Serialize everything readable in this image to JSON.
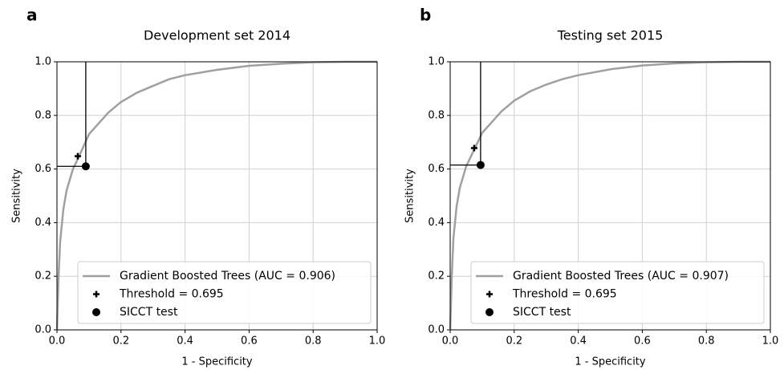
{
  "chart_data": [
    {
      "type": "line",
      "panel_label": "a",
      "title": "Development set 2014",
      "xlabel": "1 - Specificity",
      "ylabel": "Sensitivity",
      "xlim": [
        0,
        1
      ],
      "ylim": [
        0,
        1
      ],
      "xticks": [
        {
          "value": 0,
          "label": "0.0"
        },
        {
          "value": 0.2,
          "label": "0.2"
        },
        {
          "value": 0.4,
          "label": "0.4"
        },
        {
          "value": 0.6,
          "label": "0.6"
        },
        {
          "value": 0.8,
          "label": "0.8"
        },
        {
          "value": 1,
          "label": "1.0"
        }
      ],
      "yticks": [
        {
          "value": 0,
          "label": "0.0"
        },
        {
          "value": 0.2,
          "label": "0.2"
        },
        {
          "value": 0.4,
          "label": "0.4"
        },
        {
          "value": 0.6,
          "label": "0.6"
        },
        {
          "value": 0.8,
          "label": "0.8"
        },
        {
          "value": 1,
          "label": "1.0"
        }
      ],
      "grid": true,
      "legend_loc": "lower right",
      "series": [
        {
          "name": "Gradient Boosted Trees (AUC = 0.906)",
          "color": "#a0a0a0",
          "marker": "none",
          "x": [
            0,
            0.005,
            0.01,
            0.02,
            0.03,
            0.05,
            0.07,
            0.1,
            0.13,
            0.16,
            0.2,
            0.25,
            0.3,
            0.35,
            0.4,
            0.5,
            0.6,
            0.7,
            0.8,
            0.9,
            1.0
          ],
          "values": [
            0,
            0.2,
            0.33,
            0.45,
            0.52,
            0.6,
            0.65,
            0.73,
            0.77,
            0.81,
            0.85,
            0.885,
            0.91,
            0.935,
            0.95,
            0.97,
            0.985,
            0.993,
            0.998,
            1.0,
            1.0
          ]
        },
        {
          "name": "Threshold = 0.695",
          "color": "#000000",
          "marker": "plus",
          "x": [
            0.065
          ],
          "values": [
            0.648
          ]
        },
        {
          "name": "SICCT test",
          "color": "#000000",
          "marker": "circle",
          "x": [
            0.09
          ],
          "values": [
            0.61
          ]
        }
      ]
    },
    {
      "type": "line",
      "panel_label": "b",
      "title": "Testing set 2015",
      "xlabel": "1 - Specificity",
      "ylabel": "Sensitivity",
      "xlim": [
        0,
        1
      ],
      "ylim": [
        0,
        1
      ],
      "xticks": [
        {
          "value": 0,
          "label": "0.0"
        },
        {
          "value": 0.2,
          "label": "0.2"
        },
        {
          "value": 0.4,
          "label": "0.4"
        },
        {
          "value": 0.6,
          "label": "0.6"
        },
        {
          "value": 0.8,
          "label": "0.8"
        },
        {
          "value": 1,
          "label": "1.0"
        }
      ],
      "yticks": [
        {
          "value": 0,
          "label": "0.0"
        },
        {
          "value": 0.2,
          "label": "0.2"
        },
        {
          "value": 0.4,
          "label": "0.4"
        },
        {
          "value": 0.6,
          "label": "0.6"
        },
        {
          "value": 0.8,
          "label": "0.8"
        },
        {
          "value": 1,
          "label": "1.0"
        }
      ],
      "grid": true,
      "legend_loc": "lower right",
      "series": [
        {
          "name": "Gradient Boosted Trees (AUC = 0.907)",
          "color": "#a0a0a0",
          "marker": "none",
          "x": [
            0,
            0.005,
            0.01,
            0.02,
            0.03,
            0.05,
            0.07,
            0.1,
            0.13,
            0.16,
            0.2,
            0.25,
            0.3,
            0.35,
            0.4,
            0.5,
            0.6,
            0.7,
            0.8,
            0.9,
            1.0
          ],
          "values": [
            0,
            0.2,
            0.34,
            0.46,
            0.53,
            0.61,
            0.66,
            0.735,
            0.775,
            0.815,
            0.855,
            0.89,
            0.915,
            0.935,
            0.95,
            0.972,
            0.986,
            0.994,
            0.998,
            1.0,
            1.0
          ]
        },
        {
          "name": "Threshold = 0.695",
          "color": "#000000",
          "marker": "plus",
          "x": [
            0.075
          ],
          "values": [
            0.678
          ]
        },
        {
          "name": "SICCT test",
          "color": "#000000",
          "marker": "circle",
          "x": [
            0.095
          ],
          "values": [
            0.615
          ]
        }
      ]
    }
  ]
}
